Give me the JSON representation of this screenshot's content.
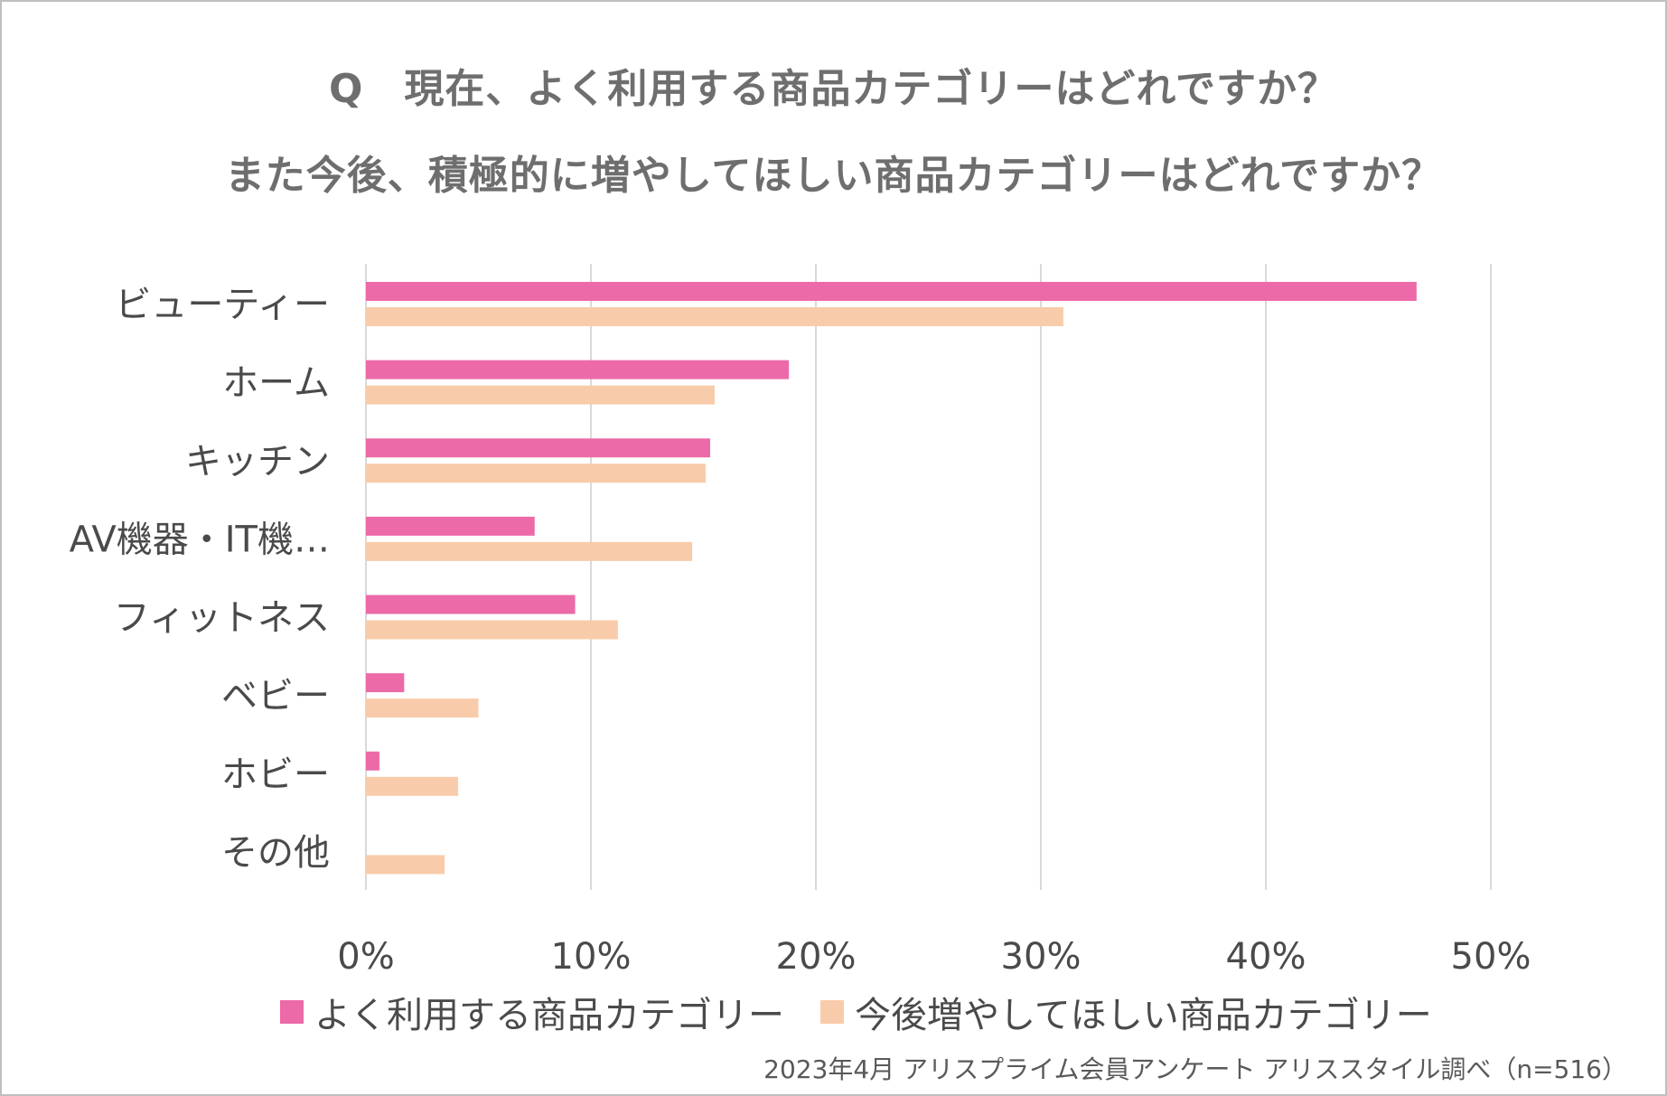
{
  "title_line1": "Q　現在、よく利用する商品カテゴリーはどれですか？",
  "title_line2": "また今後、積極的に増やしてほしい商品カテゴリーはどれですか？",
  "source": "2023年4月 アリスプライム会員アンケート アリススタイル調べ（n=516）",
  "chart_data": {
    "type": "bar",
    "orientation": "horizontal",
    "categories": [
      "ビューティー",
      "ホーム",
      "キッチン",
      "AV機器・IT機…",
      "フィットネス",
      "ベビー",
      "ホビー",
      "その他"
    ],
    "series": [
      {
        "name": "よく利用する商品カテゴリー",
        "color": "#ec6aa7",
        "values": [
          46.7,
          18.8,
          15.3,
          7.5,
          9.3,
          1.7,
          0.6,
          0
        ]
      },
      {
        "name": "今後増やしてほしい商品カテゴリー",
        "color": "#f8ccaa",
        "values": [
          31.0,
          15.5,
          15.1,
          14.5,
          11.2,
          5.0,
          4.1,
          3.5
        ]
      }
    ],
    "xlim": [
      0,
      50
    ],
    "xticks": [
      "0%",
      "10%",
      "20%",
      "30%",
      "40%",
      "50%"
    ],
    "xtick_values": [
      0,
      10,
      20,
      30,
      40,
      50
    ],
    "grid": true,
    "legend_position": "bottom"
  }
}
